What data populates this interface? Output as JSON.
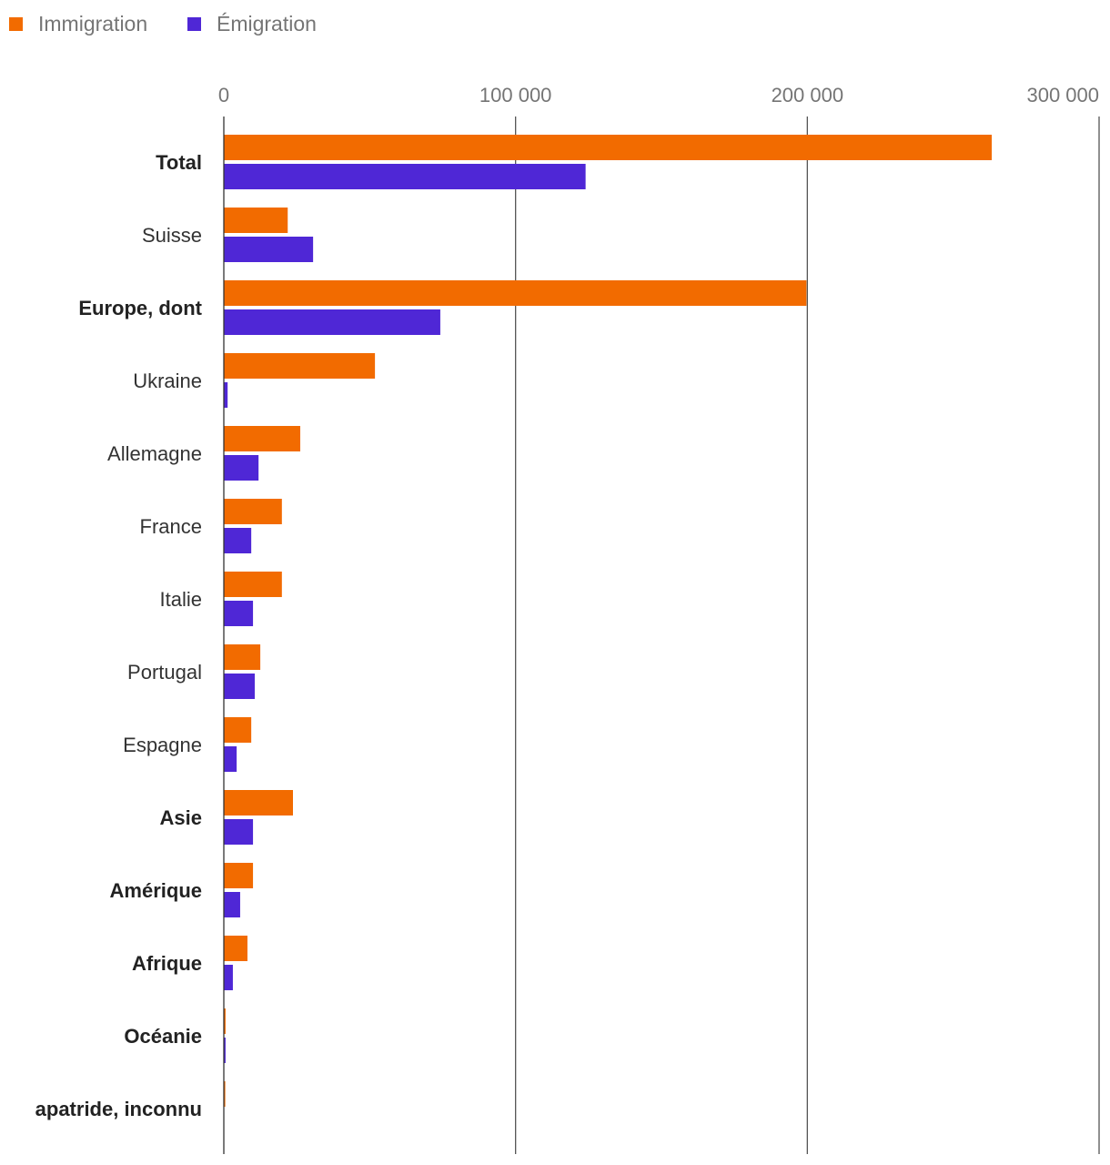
{
  "chart_data": {
    "type": "bar",
    "orientation": "horizontal",
    "categories": [
      "Total",
      "Suisse",
      "Europe, dont",
      "Ukraine",
      "Allemagne",
      "France",
      "Italie",
      "Portugal",
      "Espagne",
      "Asie",
      "Amérique",
      "Afrique",
      "Océanie",
      "apatride, inconnu"
    ],
    "bold_categories": [
      "Total",
      "Europe, dont",
      "Asie",
      "Amérique",
      "Afrique",
      "Océanie",
      "apatride, inconnu"
    ],
    "series": [
      {
        "name": "Immigration",
        "color": "#f26b00",
        "values": [
          263200,
          21900,
          199700,
          51800,
          26200,
          19900,
          19900,
          12500,
          9400,
          23700,
          10000,
          8100,
          600,
          500
        ]
      },
      {
        "name": "Émigration",
        "color": "#4f27d6",
        "values": [
          124000,
          30600,
          74200,
          1300,
          11900,
          9400,
          10000,
          10600,
          4400,
          10000,
          5600,
          3100,
          600,
          0
        ]
      }
    ],
    "xlim": [
      0,
      300000
    ],
    "xticks": [
      0,
      100000,
      200000,
      300000
    ],
    "xtick_labels": [
      "0",
      "100 000",
      "200 000",
      "300 000"
    ],
    "grid": true,
    "legend_position": "top-left",
    "title": "",
    "xlabel": "",
    "ylabel": ""
  }
}
